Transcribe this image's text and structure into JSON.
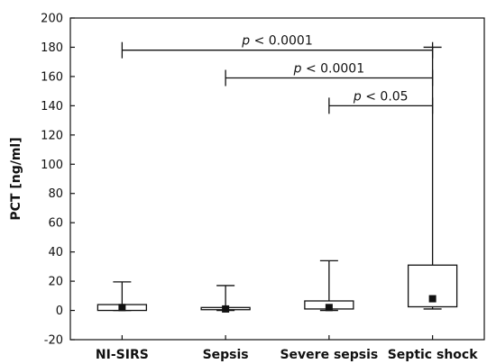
{
  "chart_data": {
    "type": "box",
    "ylabel": "PCT [ng/ml]",
    "ylim": [
      -20,
      200
    ],
    "yticks": [
      -20,
      0,
      20,
      40,
      60,
      80,
      100,
      120,
      140,
      160,
      180,
      200
    ],
    "categories": [
      "NI-SIRS",
      "Sepsis",
      "Severe sepsis",
      "Septic shock"
    ],
    "boxes": [
      {
        "category": "NI-SIRS",
        "min": 0,
        "q1": 0,
        "median": 1,
        "q3": 4,
        "max": 19.5,
        "mean": 2
      },
      {
        "category": "Sepsis",
        "min": 0,
        "q1": 0.5,
        "median": 1,
        "q3": 2,
        "max": 17,
        "mean": 1
      },
      {
        "category": "Severe sepsis",
        "min": 0,
        "q1": 1,
        "median": 2,
        "q3": 6.5,
        "max": 34,
        "mean": 2
      },
      {
        "category": "Septic shock",
        "min": 1,
        "q1": 2.5,
        "median": 8,
        "q3": 31,
        "max": 180,
        "mean": 8
      }
    ],
    "comparisons": [
      {
        "from": "NI-SIRS",
        "to": "Septic shock",
        "y": 178,
        "italic": "p",
        "text": " < 0.0001"
      },
      {
        "from": "Sepsis",
        "to": "Septic shock",
        "y": 159,
        "italic": "p",
        "text": " < 0.0001"
      },
      {
        "from": "Severe sepsis",
        "to": "Septic shock",
        "y": 140,
        "italic": "p",
        "text": " < 0.05"
      }
    ],
    "grid": false,
    "legend": "none"
  }
}
